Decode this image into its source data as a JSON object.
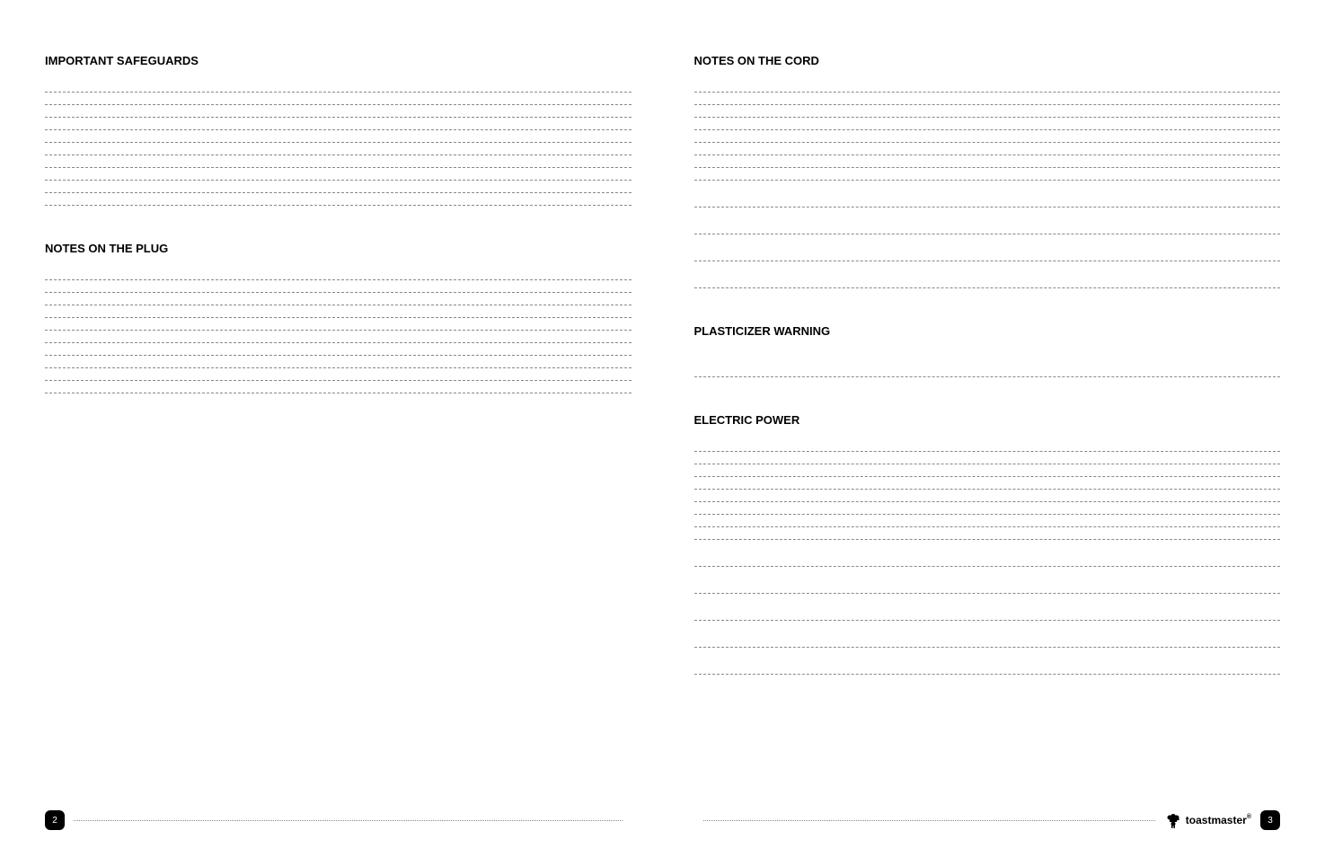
{
  "left": {
    "page_number": "2",
    "sections": [
      {
        "title": "IMPORTANT SAFEGUARDS",
        "sub": "",
        "dense_lines": 10,
        "spaced_lines": 0
      },
      {
        "title": "NOTES ON THE PLUG",
        "sub": "",
        "dense_lines": 10,
        "spaced_lines": 0
      }
    ]
  },
  "right": {
    "page_number": "3",
    "sections": [
      {
        "title": "NOTES ON THE CORD",
        "sub": "",
        "dense_lines": 8,
        "spaced_lines": 4
      },
      {
        "title": "PLASTICIZER WARNING",
        "sub": "",
        "dense_lines": 0,
        "spaced_lines": 1
      },
      {
        "title": "ELECTRIC POWER",
        "sub": "",
        "dense_lines": 8,
        "spaced_lines": 5
      }
    ],
    "logo_text": "toastmaster"
  },
  "colors": {
    "bg": "#ffffff",
    "text": "#000000",
    "line": "#888888"
  }
}
